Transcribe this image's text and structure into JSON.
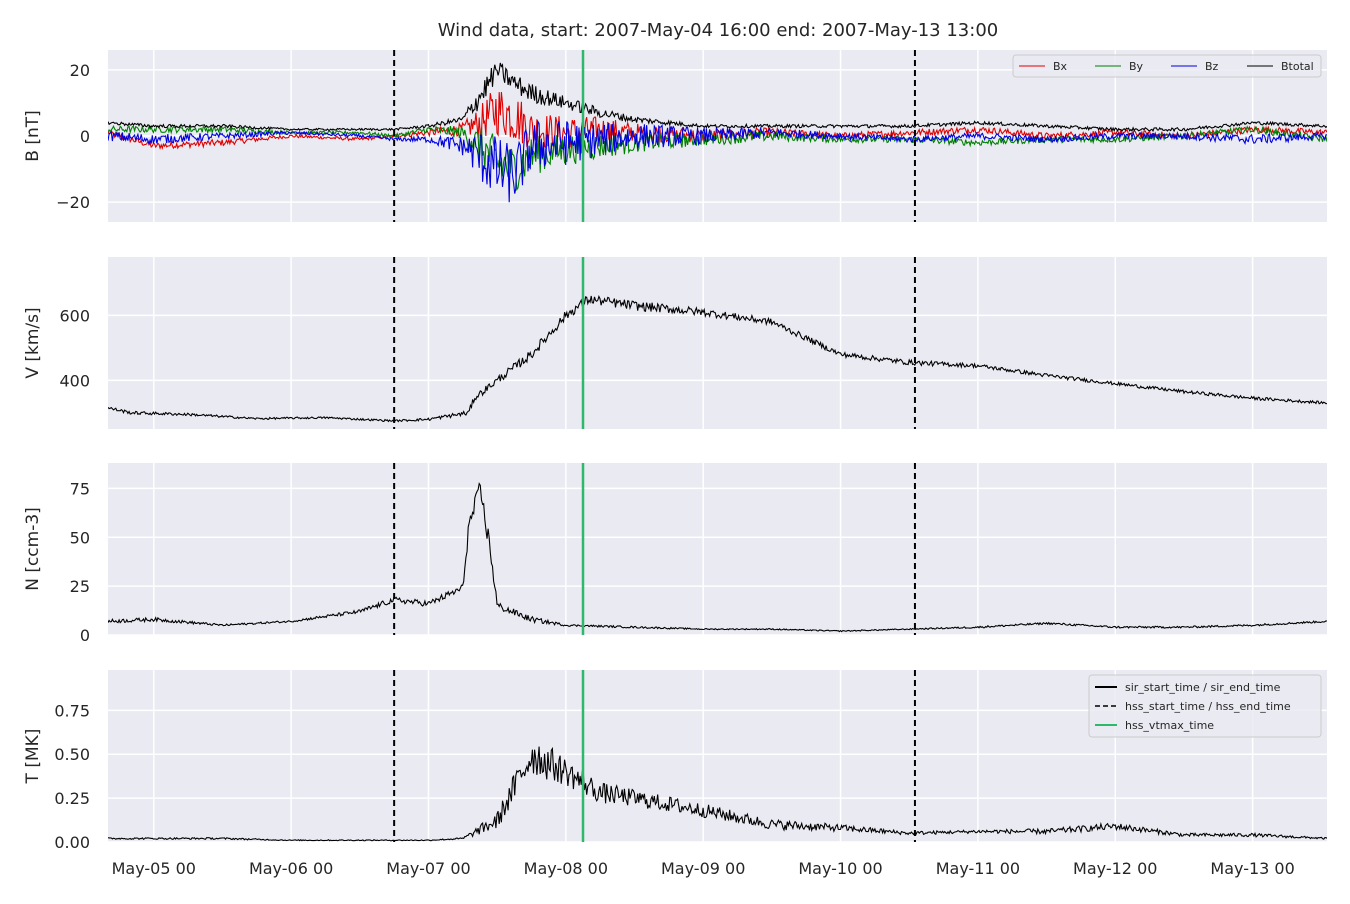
{
  "chart_data": {
    "type": "line",
    "title": "Wind data, start: 2007-May-04 16:00  end: 2007-May-13 13:00",
    "x_axis": {
      "type": "datetime",
      "range": [
        "2007-05-04T16:00",
        "2007-05-13T13:00"
      ],
      "tick_labels": [
        "May-05 00",
        "May-06 00",
        "May-07 00",
        "May-08 00",
        "May-09 00",
        "May-10 00",
        "May-11 00",
        "May-12 00",
        "May-13 00"
      ],
      "tick_times": [
        "2007-05-05T00:00",
        "2007-05-06T00:00",
        "2007-05-07T00:00",
        "2007-05-08T00:00",
        "2007-05-09T00:00",
        "2007-05-10T00:00",
        "2007-05-11T00:00",
        "2007-05-12T00:00",
        "2007-05-13T00:00"
      ]
    },
    "grid": true,
    "events": [
      {
        "time": "2007-05-06T18:00",
        "style": "dashed",
        "color": "#000000"
      },
      {
        "time": "2007-05-10T13:00",
        "style": "dashed",
        "color": "#000000"
      },
      {
        "time": "2007-05-08T03:00",
        "style": "solid",
        "color": "#2eb86b"
      }
    ],
    "event_legend": {
      "placement": "top-right",
      "entries": [
        {
          "label": "sir_start_time / sir_end_time",
          "style": "solid",
          "color": "#000000"
        },
        {
          "label": "hss_start_time / hss_end_time",
          "style": "dashed",
          "color": "#000000"
        },
        {
          "label": "hss_vtmax_time",
          "style": "solid",
          "color": "#2eb86b"
        }
      ]
    },
    "panels": [
      {
        "ylabel": "B [nT]",
        "ylim": [
          -26,
          26
        ],
        "yticks": [
          -20,
          0,
          20
        ],
        "legend": {
          "placement": "top-right",
          "columns": 4
        },
        "series": [
          {
            "name": "Bx",
            "color": "#e00000",
            "x": [
              "2007-05-04T16:00",
              "2007-05-05T00:00",
              "2007-05-05T12:00",
              "2007-05-06T00:00",
              "2007-05-06T12:00",
              "2007-05-06T18:00",
              "2007-05-07T00:00",
              "2007-05-07T06:00",
              "2007-05-07T09:00",
              "2007-05-07T12:00",
              "2007-05-07T15:00",
              "2007-05-07T18:00",
              "2007-05-08T00:00",
              "2007-05-08T06:00",
              "2007-05-08T12:00",
              "2007-05-09T00:00",
              "2007-05-09T12:00",
              "2007-05-10T00:00",
              "2007-05-10T12:00",
              "2007-05-11T00:00",
              "2007-05-11T12:00",
              "2007-05-12T00:00",
              "2007-05-12T12:00",
              "2007-05-13T00:00",
              "2007-05-13T13:00"
            ],
            "values": [
              1,
              -3,
              -2,
              0,
              -1,
              0,
              1,
              2,
              4,
              8,
              6,
              2,
              1,
              2,
              1,
              0,
              1,
              0,
              1,
              2,
              0,
              1,
              0,
              2,
              1
            ],
            "noise": [
              1,
              1,
              1,
              0.5,
              0.5,
              0.5,
              1,
              2,
              5,
              8,
              8,
              6,
              5,
              4,
              3,
              2,
              1.5,
              1,
              1,
              1,
              1,
              1,
              1,
              1,
              1
            ]
          },
          {
            "name": "By",
            "color": "#008000",
            "x": [
              "2007-05-04T16:00",
              "2007-05-05T00:00",
              "2007-05-05T12:00",
              "2007-05-06T00:00",
              "2007-05-06T12:00",
              "2007-05-06T18:00",
              "2007-05-07T00:00",
              "2007-05-07T06:00",
              "2007-05-07T09:00",
              "2007-05-07T12:00",
              "2007-05-07T15:00",
              "2007-05-07T18:00",
              "2007-05-08T00:00",
              "2007-05-08T06:00",
              "2007-05-08T12:00",
              "2007-05-09T00:00",
              "2007-05-09T12:00",
              "2007-05-10T00:00",
              "2007-05-10T12:00",
              "2007-05-11T00:00",
              "2007-05-11T12:00",
              "2007-05-12T00:00",
              "2007-05-12T12:00",
              "2007-05-13T00:00",
              "2007-05-13T13:00"
            ],
            "values": [
              2,
              2,
              2,
              1,
              1,
              0,
              2,
              1,
              -3,
              -8,
              -10,
              -6,
              -4,
              -3,
              -2,
              -1,
              0,
              -1,
              -1,
              -2,
              -1,
              -1,
              0,
              2,
              -1
            ],
            "noise": [
              1,
              1,
              1,
              0.5,
              0.5,
              0.5,
              1,
              2,
              6,
              8,
              7,
              6,
              5,
              4,
              3,
              2,
              1.5,
              1,
              1,
              1,
              1,
              1,
              1,
              1,
              1
            ]
          },
          {
            "name": "Bz",
            "color": "#0000e0",
            "x": [
              "2007-05-04T16:00",
              "2007-05-05T00:00",
              "2007-05-05T12:00",
              "2007-05-06T00:00",
              "2007-05-06T12:00",
              "2007-05-06T18:00",
              "2007-05-07T00:00",
              "2007-05-07T06:00",
              "2007-05-07T09:00",
              "2007-05-07T12:00",
              "2007-05-07T15:00",
              "2007-05-07T18:00",
              "2007-05-08T00:00",
              "2007-05-08T06:00",
              "2007-05-08T12:00",
              "2007-05-09T00:00",
              "2007-05-09T12:00",
              "2007-05-10T00:00",
              "2007-05-10T12:00",
              "2007-05-11T00:00",
              "2007-05-11T12:00",
              "2007-05-12T00:00",
              "2007-05-12T12:00",
              "2007-05-13T00:00",
              "2007-05-13T13:00"
            ],
            "values": [
              0,
              -1,
              0,
              1,
              0,
              -1,
              -1,
              -3,
              -6,
              -10,
              -12,
              -3,
              -2,
              -1,
              0,
              0,
              1,
              0,
              -1,
              0,
              -1,
              0,
              0,
              -1,
              0
            ],
            "noise": [
              1.5,
              1.5,
              1,
              0.5,
              0.5,
              0.5,
              1,
              3,
              8,
              10,
              9,
              8,
              7,
              5,
              4,
              2.5,
              1.5,
              1,
              1,
              1,
              1,
              1,
              1,
              1.5,
              1
            ]
          },
          {
            "name": "Btotal",
            "color": "#000000",
            "x": [
              "2007-05-04T16:00",
              "2007-05-05T00:00",
              "2007-05-05T12:00",
              "2007-05-06T00:00",
              "2007-05-06T12:00",
              "2007-05-06T18:00",
              "2007-05-07T00:00",
              "2007-05-07T06:00",
              "2007-05-07T09:00",
              "2007-05-07T12:00",
              "2007-05-07T15:00",
              "2007-05-07T18:00",
              "2007-05-08T00:00",
              "2007-05-08T06:00",
              "2007-05-08T12:00",
              "2007-05-09T00:00",
              "2007-05-09T12:00",
              "2007-05-10T00:00",
              "2007-05-10T12:00",
              "2007-05-11T00:00",
              "2007-05-11T12:00",
              "2007-05-12T00:00",
              "2007-05-12T12:00",
              "2007-05-13T00:00",
              "2007-05-13T13:00"
            ],
            "values": [
              4,
              3,
              3,
              2,
              2,
              2,
              3,
              5,
              12,
              20,
              16,
              13,
              10,
              7,
              5,
              3,
              3,
              3,
              3,
              4,
              3,
              2,
              2,
              4,
              3
            ],
            "noise": [
              0.5,
              0.5,
              0.5,
              0.3,
              0.3,
              0.3,
              0.5,
              1,
              4,
              3,
              3,
              3,
              2,
              1.5,
              1,
              0.5,
              0.5,
              0.5,
              0.5,
              0.5,
              0.5,
              0.5,
              0.5,
              0.5,
              0.5
            ]
          }
        ]
      },
      {
        "ylabel": "V [km/s]",
        "ylim": [
          250,
          780
        ],
        "yticks": [
          400,
          600
        ],
        "series": [
          {
            "name": "",
            "color": "#000000",
            "x": [
              "2007-05-04T16:00",
              "2007-05-04T20:00",
              "2007-05-05T06:00",
              "2007-05-05T18:00",
              "2007-05-06T06:00",
              "2007-05-06T18:00",
              "2007-05-07T00:00",
              "2007-05-07T07:00",
              "2007-05-07T08:00",
              "2007-05-07T12:00",
              "2007-05-07T18:00",
              "2007-05-08T00:00",
              "2007-05-08T04:00",
              "2007-05-08T12:00",
              "2007-05-09T00:00",
              "2007-05-09T12:00",
              "2007-05-10T00:00",
              "2007-05-10T12:00",
              "2007-05-11T00:00",
              "2007-05-11T12:00",
              "2007-05-12T00:00",
              "2007-05-12T12:00",
              "2007-05-13T00:00",
              "2007-05-13T13:00"
            ],
            "values": [
              315,
              300,
              295,
              282,
              285,
              275,
              280,
              300,
              345,
              400,
              480,
              600,
              650,
              630,
              610,
              580,
              480,
              455,
              445,
              415,
              390,
              365,
              345,
              330
            ],
            "noise": [
              5,
              5,
              4,
              3,
              3,
              3,
              4,
              8,
              10,
              12,
              15,
              15,
              15,
              15,
              12,
              10,
              8,
              8,
              6,
              6,
              5,
              5,
              5,
              4
            ]
          }
        ]
      },
      {
        "ylabel": "N [ccm-3]",
        "ylim": [
          0,
          88
        ],
        "yticks": [
          0,
          25,
          50,
          75
        ],
        "series": [
          {
            "name": "",
            "color": "#000000",
            "x": [
              "2007-05-04T16:00",
              "2007-05-05T00:00",
              "2007-05-05T12:00",
              "2007-05-06T00:00",
              "2007-05-06T12:00",
              "2007-05-06T18:00",
              "2007-05-07T00:00",
              "2007-05-07T06:00",
              "2007-05-07T07:00",
              "2007-05-07T09:00",
              "2007-05-07T11:00",
              "2007-05-07T12:00",
              "2007-05-07T18:00",
              "2007-05-08T00:00",
              "2007-05-08T12:00",
              "2007-05-09T00:00",
              "2007-05-09T12:00",
              "2007-05-10T00:00",
              "2007-05-10T12:00",
              "2007-05-11T00:00",
              "2007-05-11T12:00",
              "2007-05-12T00:00",
              "2007-05-12T12:00",
              "2007-05-13T00:00",
              "2007-05-13T13:00"
            ],
            "values": [
              7,
              8,
              5,
              7,
              12,
              18,
              16,
              24,
              55,
              75,
              40,
              15,
              8,
              5,
              4,
              3,
              3,
              2,
              3,
              4,
              6,
              4,
              4,
              5,
              7
            ],
            "noise": [
              1,
              1,
              0.5,
              0.5,
              1,
              1.5,
              1.5,
              2,
              5,
              4,
              6,
              2,
              1.5,
              0.5,
              0.5,
              0.3,
              0.3,
              0.3,
              0.3,
              0.5,
              0.5,
              0.5,
              0.5,
              0.5,
              0.5
            ]
          }
        ]
      },
      {
        "ylabel": "T [MK]",
        "ylim": [
          0,
          0.98
        ],
        "yticks": [
          0.0,
          0.25,
          0.5,
          0.75
        ],
        "series": [
          {
            "name": "",
            "color": "#000000",
            "x": [
              "2007-05-04T16:00",
              "2007-05-05T00:00",
              "2007-05-05T12:00",
              "2007-05-06T00:00",
              "2007-05-06T18:00",
              "2007-05-07T00:00",
              "2007-05-07T06:00",
              "2007-05-07T12:00",
              "2007-05-07T18:00",
              "2007-05-08T00:00",
              "2007-05-08T06:00",
              "2007-05-08T12:00",
              "2007-05-09T00:00",
              "2007-05-09T12:00",
              "2007-05-10T00:00",
              "2007-05-10T12:00",
              "2007-05-11T00:00",
              "2007-05-11T12:00",
              "2007-05-12T00:00",
              "2007-05-12T12:00",
              "2007-05-13T00:00",
              "2007-05-13T13:00"
            ],
            "values": [
              0.02,
              0.02,
              0.02,
              0.01,
              0.01,
              0.01,
              0.02,
              0.12,
              0.5,
              0.4,
              0.28,
              0.25,
              0.18,
              0.1,
              0.08,
              0.05,
              0.06,
              0.06,
              0.09,
              0.04,
              0.04,
              0.02
            ],
            "noise": [
              0.005,
              0.005,
              0.005,
              0.003,
              0.003,
              0.003,
              0.005,
              0.05,
              0.12,
              0.08,
              0.06,
              0.05,
              0.04,
              0.03,
              0.02,
              0.01,
              0.01,
              0.015,
              0.02,
              0.01,
              0.01,
              0.005
            ]
          }
        ]
      }
    ]
  }
}
